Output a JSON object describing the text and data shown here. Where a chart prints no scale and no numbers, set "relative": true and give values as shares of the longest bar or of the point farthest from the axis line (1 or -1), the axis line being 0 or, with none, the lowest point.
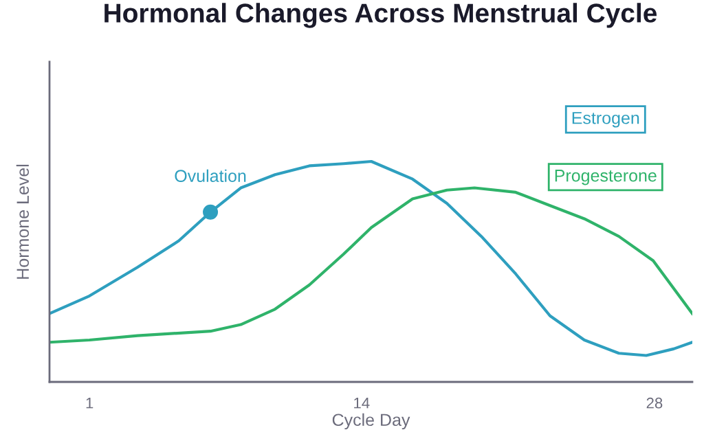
{
  "chart_data": {
    "type": "line",
    "title": "Hormonal Changes Across Menstrual Cycle",
    "xlabel": "Cycle Day",
    "ylabel": "Hormone Level",
    "relative": true,
    "xlim": [
      -0.91,
      29.81
    ],
    "xticks": [
      1,
      14,
      28
    ],
    "grid": false,
    "marker": "none",
    "line_style": "solid",
    "series": [
      {
        "name": "Estrogen",
        "color": "#2e9fbf",
        "x": [
          -0.91,
          1,
          3.3,
          5.27,
          6.78,
          8.23,
          9.87,
          11.51,
          13.15,
          14.47,
          16.44,
          18.08,
          19.73,
          21.37,
          23.01,
          24.65,
          26.3,
          27.61,
          28.92,
          29.81
        ],
        "values": [
          0.31,
          0.39,
          0.52,
          0.64,
          0.77,
          0.88,
          0.94,
          0.98,
          0.99,
          1.0,
          0.92,
          0.81,
          0.66,
          0.49,
          0.3,
          0.19,
          0.13,
          0.12,
          0.15,
          0.18
        ]
      },
      {
        "name": "Progesterone",
        "color": "#2fb36a",
        "x": [
          -0.91,
          1,
          3.3,
          6.78,
          8.23,
          9.87,
          11.51,
          13.15,
          14.47,
          16.44,
          18.08,
          19.4,
          21.37,
          23.01,
          24.65,
          26.3,
          27.94,
          29.81
        ],
        "values": [
          0.18,
          0.19,
          0.21,
          0.23,
          0.26,
          0.33,
          0.44,
          0.58,
          0.7,
          0.83,
          0.87,
          0.88,
          0.86,
          0.8,
          0.74,
          0.66,
          0.55,
          0.31
        ]
      }
    ],
    "annotations": [
      {
        "text": "Ovulation",
        "x": 6.78,
        "y": 0.77
      }
    ]
  }
}
